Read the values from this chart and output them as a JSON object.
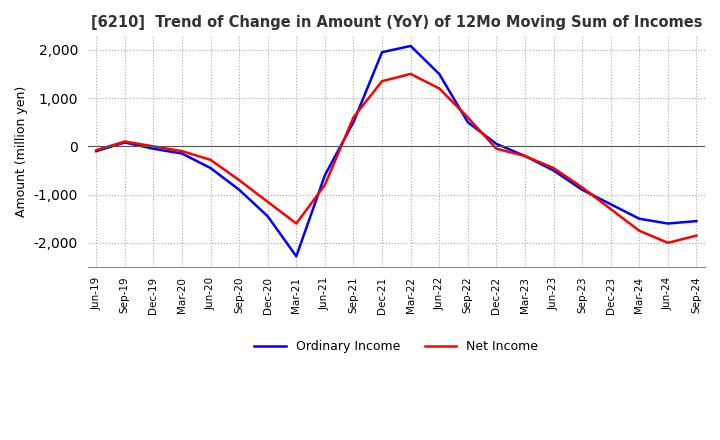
{
  "title": "[6210]  Trend of Change in Amount (YoY) of 12Mo Moving Sum of Incomes",
  "ylabel": "Amount (million yen)",
  "background_color": "#ffffff",
  "grid_color": "#aaaaaa",
  "ordinary_income_color": "#0000ff",
  "net_income_color": "#ff0000",
  "ylim": [
    -2500,
    2300
  ],
  "yticks": [
    -2000,
    -1000,
    0,
    1000,
    2000
  ],
  "x_labels": [
    "Jun-19",
    "Sep-19",
    "Dec-19",
    "Mar-20",
    "Jun-20",
    "Sep-20",
    "Dec-20",
    "Mar-21",
    "Jun-21",
    "Sep-21",
    "Dec-21",
    "Mar-22",
    "Jun-22",
    "Sep-22",
    "Dec-22",
    "Mar-23",
    "Jun-23",
    "Sep-23",
    "Dec-23",
    "Mar-24",
    "Jun-24",
    "Sep-24"
  ],
  "ordinary_income": [
    -100,
    80,
    -50,
    -150,
    -450,
    -900,
    -1450,
    -2280,
    -600,
    500,
    1950,
    2080,
    1500,
    500,
    50,
    -200,
    -500,
    -900,
    -1200,
    -1500,
    -1600,
    -1550
  ],
  "net_income": [
    -80,
    100,
    0,
    -100,
    -280,
    -700,
    -1150,
    -1600,
    -800,
    600,
    1350,
    1500,
    1200,
    600,
    -50,
    -200,
    -450,
    -850,
    -1300,
    -1750,
    -2000,
    -1850
  ]
}
